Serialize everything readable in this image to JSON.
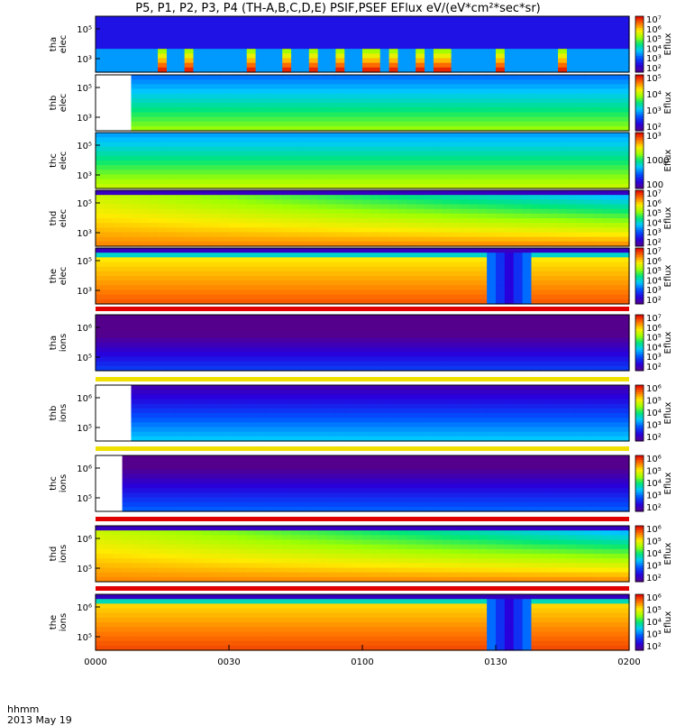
{
  "figure": {
    "title": "P5, P1, P2, P3, P4 (TH-A,B,C,D,E) PSIF,PSEF EFlux eV/(eV*cm²*sec*sr)",
    "time_axis_label": "hhmm",
    "date_label": "2013 May 19",
    "time_ticks": [
      "0000",
      "0030",
      "0100",
      "0130",
      "0200"
    ],
    "cbar_label": "Eflux"
  },
  "chart_data": {
    "type": "heatmap",
    "x_range_hhmm": [
      "0000",
      "0200"
    ],
    "x_tick_values_min": [
      0,
      30,
      60,
      90,
      120
    ],
    "panels": [
      {
        "id": "tha_elec",
        "probe_label": "tha",
        "species_label": "elec",
        "y_ticks": [
          "10⁵",
          "10³"
        ],
        "cbar_ticks": [
          "10⁷",
          "10⁶",
          "10⁵",
          "10⁴",
          "10³",
          "10²"
        ],
        "cbar_log_range": [
          2,
          7
        ],
        "data_start_min": 0,
        "base_level": 0.15,
        "feature": "bursts"
      },
      {
        "id": "thb_elec",
        "probe_label": "thb",
        "species_label": "elec",
        "y_ticks": [
          "10⁵",
          "10³"
        ],
        "cbar_ticks": [
          "10⁵",
          "10⁴",
          "10³",
          "10²"
        ],
        "cbar_log_range": [
          2,
          5
        ],
        "data_start_min": 9,
        "base_level": 0.45,
        "feature": "flat"
      },
      {
        "id": "thc_elec",
        "probe_label": "thc",
        "species_label": "elec",
        "y_ticks": [
          "10⁵",
          "10³"
        ],
        "cbar_ticks": [
          "10³",
          "1000",
          "100"
        ],
        "cbar_log_range": [
          2,
          3.2
        ],
        "data_start_min": 0,
        "base_level": 0.5,
        "feature": "flat"
      },
      {
        "id": "thd_elec",
        "probe_label": "thd",
        "species_label": "elec",
        "y_ticks": [
          "10⁵",
          "10³"
        ],
        "cbar_ticks": [
          "10⁷",
          "10⁶",
          "10⁵",
          "10⁴",
          "10³",
          "10²"
        ],
        "cbar_log_range": [
          2,
          7
        ],
        "data_start_min": 0,
        "base_level": 0.75,
        "feature": "decay"
      },
      {
        "id": "the_elec",
        "probe_label": "the",
        "species_label": "elec",
        "y_ticks": [
          "10⁵",
          "10³"
        ],
        "cbar_ticks": [
          "10⁷",
          "10⁶",
          "10⁵",
          "10⁴",
          "10³",
          "10²"
        ],
        "cbar_log_range": [
          2,
          7
        ],
        "data_start_min": 0,
        "base_level": 0.8,
        "feature": "dip",
        "dip_center_min": 93
      },
      {
        "id": "tha_ions",
        "probe_label": "tha",
        "species_label": "ions",
        "y_ticks": [
          "10⁶",
          "10⁵"
        ],
        "cbar_ticks": [
          "10⁷",
          "10⁶",
          "10⁵",
          "10⁴",
          "10³",
          "10²"
        ],
        "cbar_log_range": [
          2,
          7
        ],
        "data_start_min": 0,
        "base_level": 0.05,
        "feature": "flat"
      },
      {
        "id": "thb_ions",
        "probe_label": "thb",
        "species_label": "ions",
        "y_ticks": [
          "10⁶",
          "10⁵"
        ],
        "cbar_ticks": [
          "10⁶",
          "10⁵",
          "10⁴",
          "10³",
          "10²"
        ],
        "cbar_log_range": [
          2,
          6
        ],
        "data_start_min": 9,
        "base_level": 0.22,
        "feature": "flat"
      },
      {
        "id": "thc_ions",
        "probe_label": "thc",
        "species_label": "ions",
        "y_ticks": [
          "10⁶",
          "10⁵"
        ],
        "cbar_ticks": [
          "10⁶",
          "10⁵",
          "10⁴",
          "10³",
          "10²"
        ],
        "cbar_log_range": [
          2,
          6
        ],
        "data_start_min": 6,
        "base_level": 0.1,
        "feature": "flat"
      },
      {
        "id": "thd_ions",
        "probe_label": "thd",
        "species_label": "ions",
        "y_ticks": [
          "10⁶",
          "10⁵"
        ],
        "cbar_ticks": [
          "10⁶",
          "10⁵",
          "10⁴",
          "10³",
          "10²"
        ],
        "cbar_log_range": [
          2,
          6
        ],
        "data_start_min": 0,
        "base_level": 0.75,
        "feature": "decay"
      },
      {
        "id": "the_ions",
        "probe_label": "the",
        "species_label": "ions",
        "y_ticks": [
          "10⁶",
          "10⁵"
        ],
        "cbar_ticks": [
          "10⁶",
          "10⁵",
          "10⁴",
          "10³",
          "10²"
        ],
        "cbar_log_range": [
          2,
          6
        ],
        "data_start_min": 0,
        "base_level": 0.82,
        "feature": "dip",
        "dip_center_min": 93
      }
    ]
  }
}
